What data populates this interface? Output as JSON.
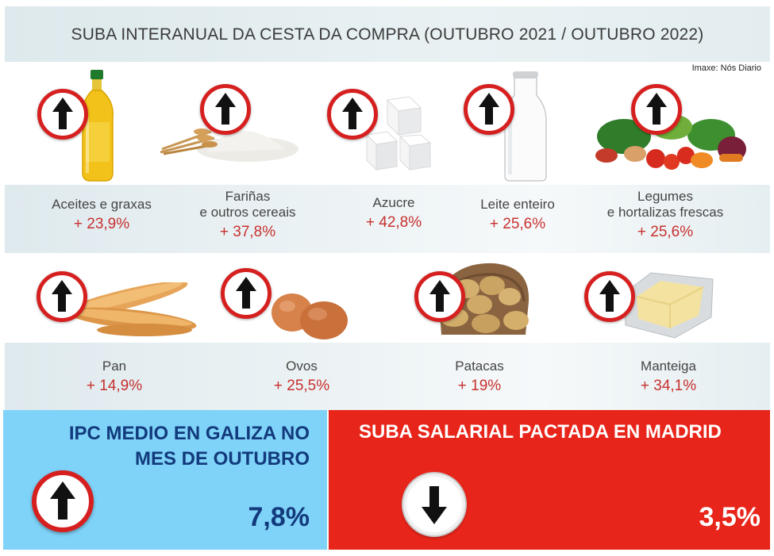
{
  "header": {
    "title": "SUBA INTERANUAL DA CESTA DA COMPRA (OUTUBRO 2021 / OUTUBRO 2022)",
    "credit": "Imaxe: Nós Diario"
  },
  "row1": [
    {
      "label": "Aceites e graxas",
      "label2": "",
      "change": "+ 23,9%",
      "icon": "oil-bottle"
    },
    {
      "label": "Fariñas",
      "label2": "e outros cereais",
      "change": "+ 37,8%",
      "icon": "flour-wheat"
    },
    {
      "label": "Azucre",
      "label2": "",
      "change": "+ 42,8%",
      "icon": "sugar-cubes"
    },
    {
      "label": "Leite enteiro",
      "label2": "",
      "change": "+ 25,6%",
      "icon": "milk-bottle"
    },
    {
      "label": "Legumes",
      "label2": "e hortalizas frescas",
      "change": "+ 25,6%",
      "icon": "vegetables"
    }
  ],
  "row2": [
    {
      "label": "Pan",
      "change": "+ 14,9%",
      "icon": "bread"
    },
    {
      "label": "Ovos",
      "change": "+ 25,5%",
      "icon": "eggs"
    },
    {
      "label": "Patacas",
      "change": "+ 19%",
      "icon": "potatoes"
    },
    {
      "label": "Manteiga",
      "change": "+ 34,1%",
      "icon": "butter"
    }
  ],
  "ipc": {
    "title_line1": "IPC MEDIO EN GALIZA NO",
    "title_line2": "MES DE OUTUBRO",
    "value": "7,8%",
    "direction": "up"
  },
  "salary": {
    "title": "SUBA SALARIAL PACTADA EN MADRID",
    "value": "3,5%",
    "direction": "down"
  },
  "colors": {
    "arrow_ring": "#d62020",
    "percent_text": "#c7312f",
    "ipc_background": "#7fd3f8",
    "ipc_text": "#123a7c",
    "salary_background": "#e8251a",
    "salary_text": "#ffffff"
  }
}
